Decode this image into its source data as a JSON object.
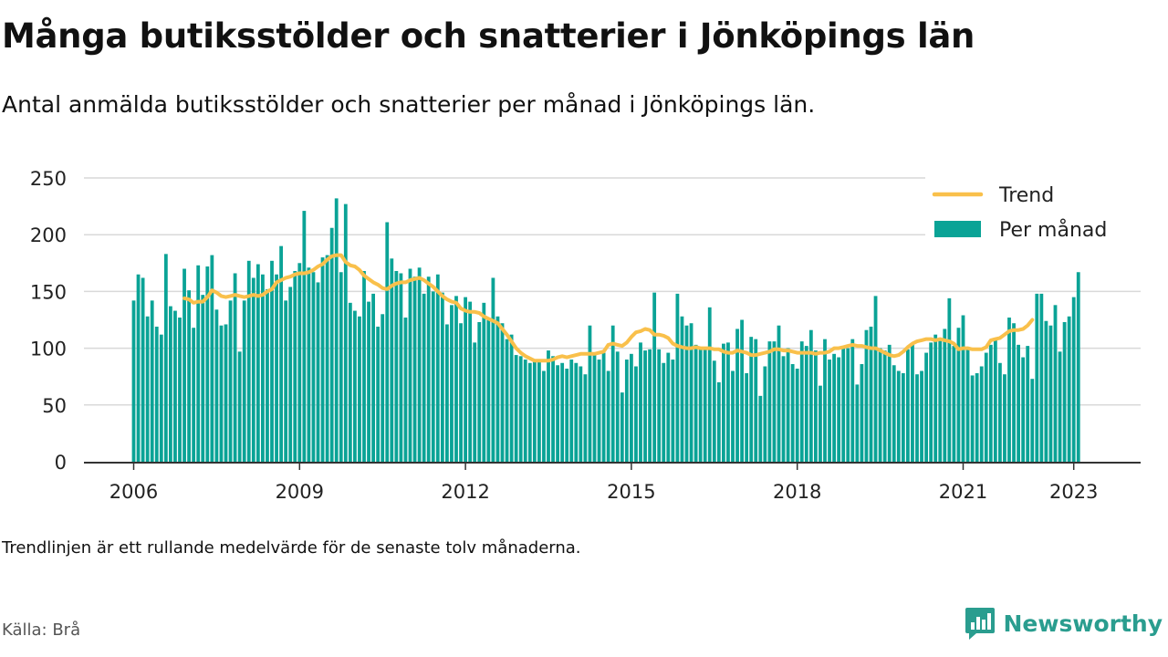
{
  "title": "Många butiksstölder och snatterier i Jönköpings län",
  "subtitle": "Antal anmälda butiksstölder och snatterier per månad i Jönköpings län.",
  "note": "Trendlinjen är ett rullande medelvärde för de senaste tolv månaderna.",
  "source": "Källa: Brå",
  "brand": {
    "name": "Newsworthy",
    "icon": "newsworthy-logo-icon"
  },
  "colors": {
    "bars": "#0aa396",
    "trend": "#f9c04b",
    "grid": "#d9d9d9",
    "axis": "#333333",
    "brand": "#2a9d8f"
  },
  "chart_data": {
    "type": "bar",
    "start_month": "2006-01",
    "frequency": "monthly",
    "x_ticks": [
      "2006",
      "2009",
      "2012",
      "2015",
      "2018",
      "2021",
      "2023"
    ],
    "ylim": [
      0,
      250
    ],
    "y_ticks": [
      0,
      50,
      100,
      150,
      200,
      250
    ],
    "grid": true,
    "legend_position": "top-right",
    "series": [
      {
        "name": "Per månad",
        "kind": "bar",
        "values": [
          142,
          165,
          162,
          128,
          142,
          119,
          112,
          183,
          137,
          133,
          127,
          170,
          151,
          118,
          173,
          147,
          172,
          182,
          134,
          120,
          121,
          142,
          166,
          97,
          142,
          177,
          162,
          174,
          165,
          152,
          177,
          165,
          190,
          142,
          154,
          168,
          175,
          221,
          171,
          167,
          158,
          180,
          182,
          206,
          232,
          167,
          227,
          140,
          133,
          128,
          168,
          141,
          148,
          119,
          130,
          211,
          179,
          168,
          166,
          127,
          170,
          163,
          171,
          148,
          163,
          150,
          165,
          149,
          121,
          138,
          146,
          122,
          145,
          141,
          105,
          123,
          140,
          126,
          162,
          128,
          122,
          108,
          112,
          94,
          93,
          90,
          87,
          88,
          89,
          80,
          98,
          93,
          85,
          87,
          82,
          90,
          87,
          84,
          77,
          120,
          95,
          90,
          96,
          80,
          120,
          97,
          61,
          90,
          95,
          84,
          105,
          98,
          99,
          149,
          99,
          87,
          96,
          90,
          148,
          128,
          120,
          122,
          103,
          99,
          100,
          136,
          89,
          70,
          104,
          105,
          80,
          117,
          125,
          78,
          110,
          108,
          58,
          84,
          106,
          106,
          120,
          93,
          100,
          86,
          82,
          106,
          102,
          116,
          98,
          67,
          108,
          90,
          95,
          92,
          102,
          100,
          108,
          68,
          86,
          116,
          119,
          146,
          100,
          98,
          103,
          85,
          80,
          78,
          99,
          103,
          77,
          80,
          96,
          105,
          112,
          108,
          117,
          144,
          102,
          118,
          129,
          100,
          76,
          78,
          84,
          96,
          103,
          108,
          87,
          77,
          127,
          122,
          103,
          92,
          102,
          73,
          148,
          148,
          124,
          120,
          138,
          97,
          123,
          128,
          145,
          167
        ]
      },
      {
        "name": "Trend",
        "kind": "line",
        "start_index": 11,
        "values": [
          144,
          143,
          140,
          141,
          141,
          145,
          151,
          149,
          146,
          145,
          146,
          147,
          146,
          145,
          146,
          147,
          146,
          147,
          150,
          152,
          158,
          160,
          162,
          163,
          165,
          166,
          166,
          167,
          169,
          172,
          174,
          178,
          181,
          182,
          182,
          176,
          173,
          172,
          169,
          164,
          161,
          158,
          156,
          153,
          152,
          155,
          157,
          158,
          158,
          160,
          161,
          162,
          160,
          157,
          154,
          150,
          146,
          143,
          141,
          140,
          135,
          133,
          132,
          132,
          131,
          128,
          126,
          124,
          122,
          117,
          112,
          106,
          100,
          96,
          93,
          91,
          89,
          89,
          89,
          89,
          90,
          92,
          93,
          92,
          93,
          94,
          95,
          95,
          95,
          95,
          96,
          97,
          103,
          104,
          103,
          102,
          105,
          110,
          114,
          115,
          117,
          116,
          112,
          112,
          111,
          109,
          104,
          102,
          101,
          100,
          100,
          101,
          100,
          100,
          100,
          99,
          99,
          97,
          96,
          96,
          98,
          97,
          96,
          94,
          94,
          95,
          96,
          97,
          99,
          99,
          98,
          98,
          97,
          96,
          96,
          96,
          96,
          95,
          96,
          96,
          97,
          100,
          100,
          101,
          102,
          103,
          102,
          102,
          101,
          100,
          100,
          98,
          96,
          94,
          93,
          94,
          97,
          101,
          104,
          106,
          107,
          108,
          108,
          107,
          108,
          107,
          106,
          104,
          99,
          100,
          100,
          99,
          99,
          99,
          101,
          107,
          108,
          109,
          112,
          115,
          116,
          116,
          117,
          120,
          125
        ]
      }
    ]
  }
}
